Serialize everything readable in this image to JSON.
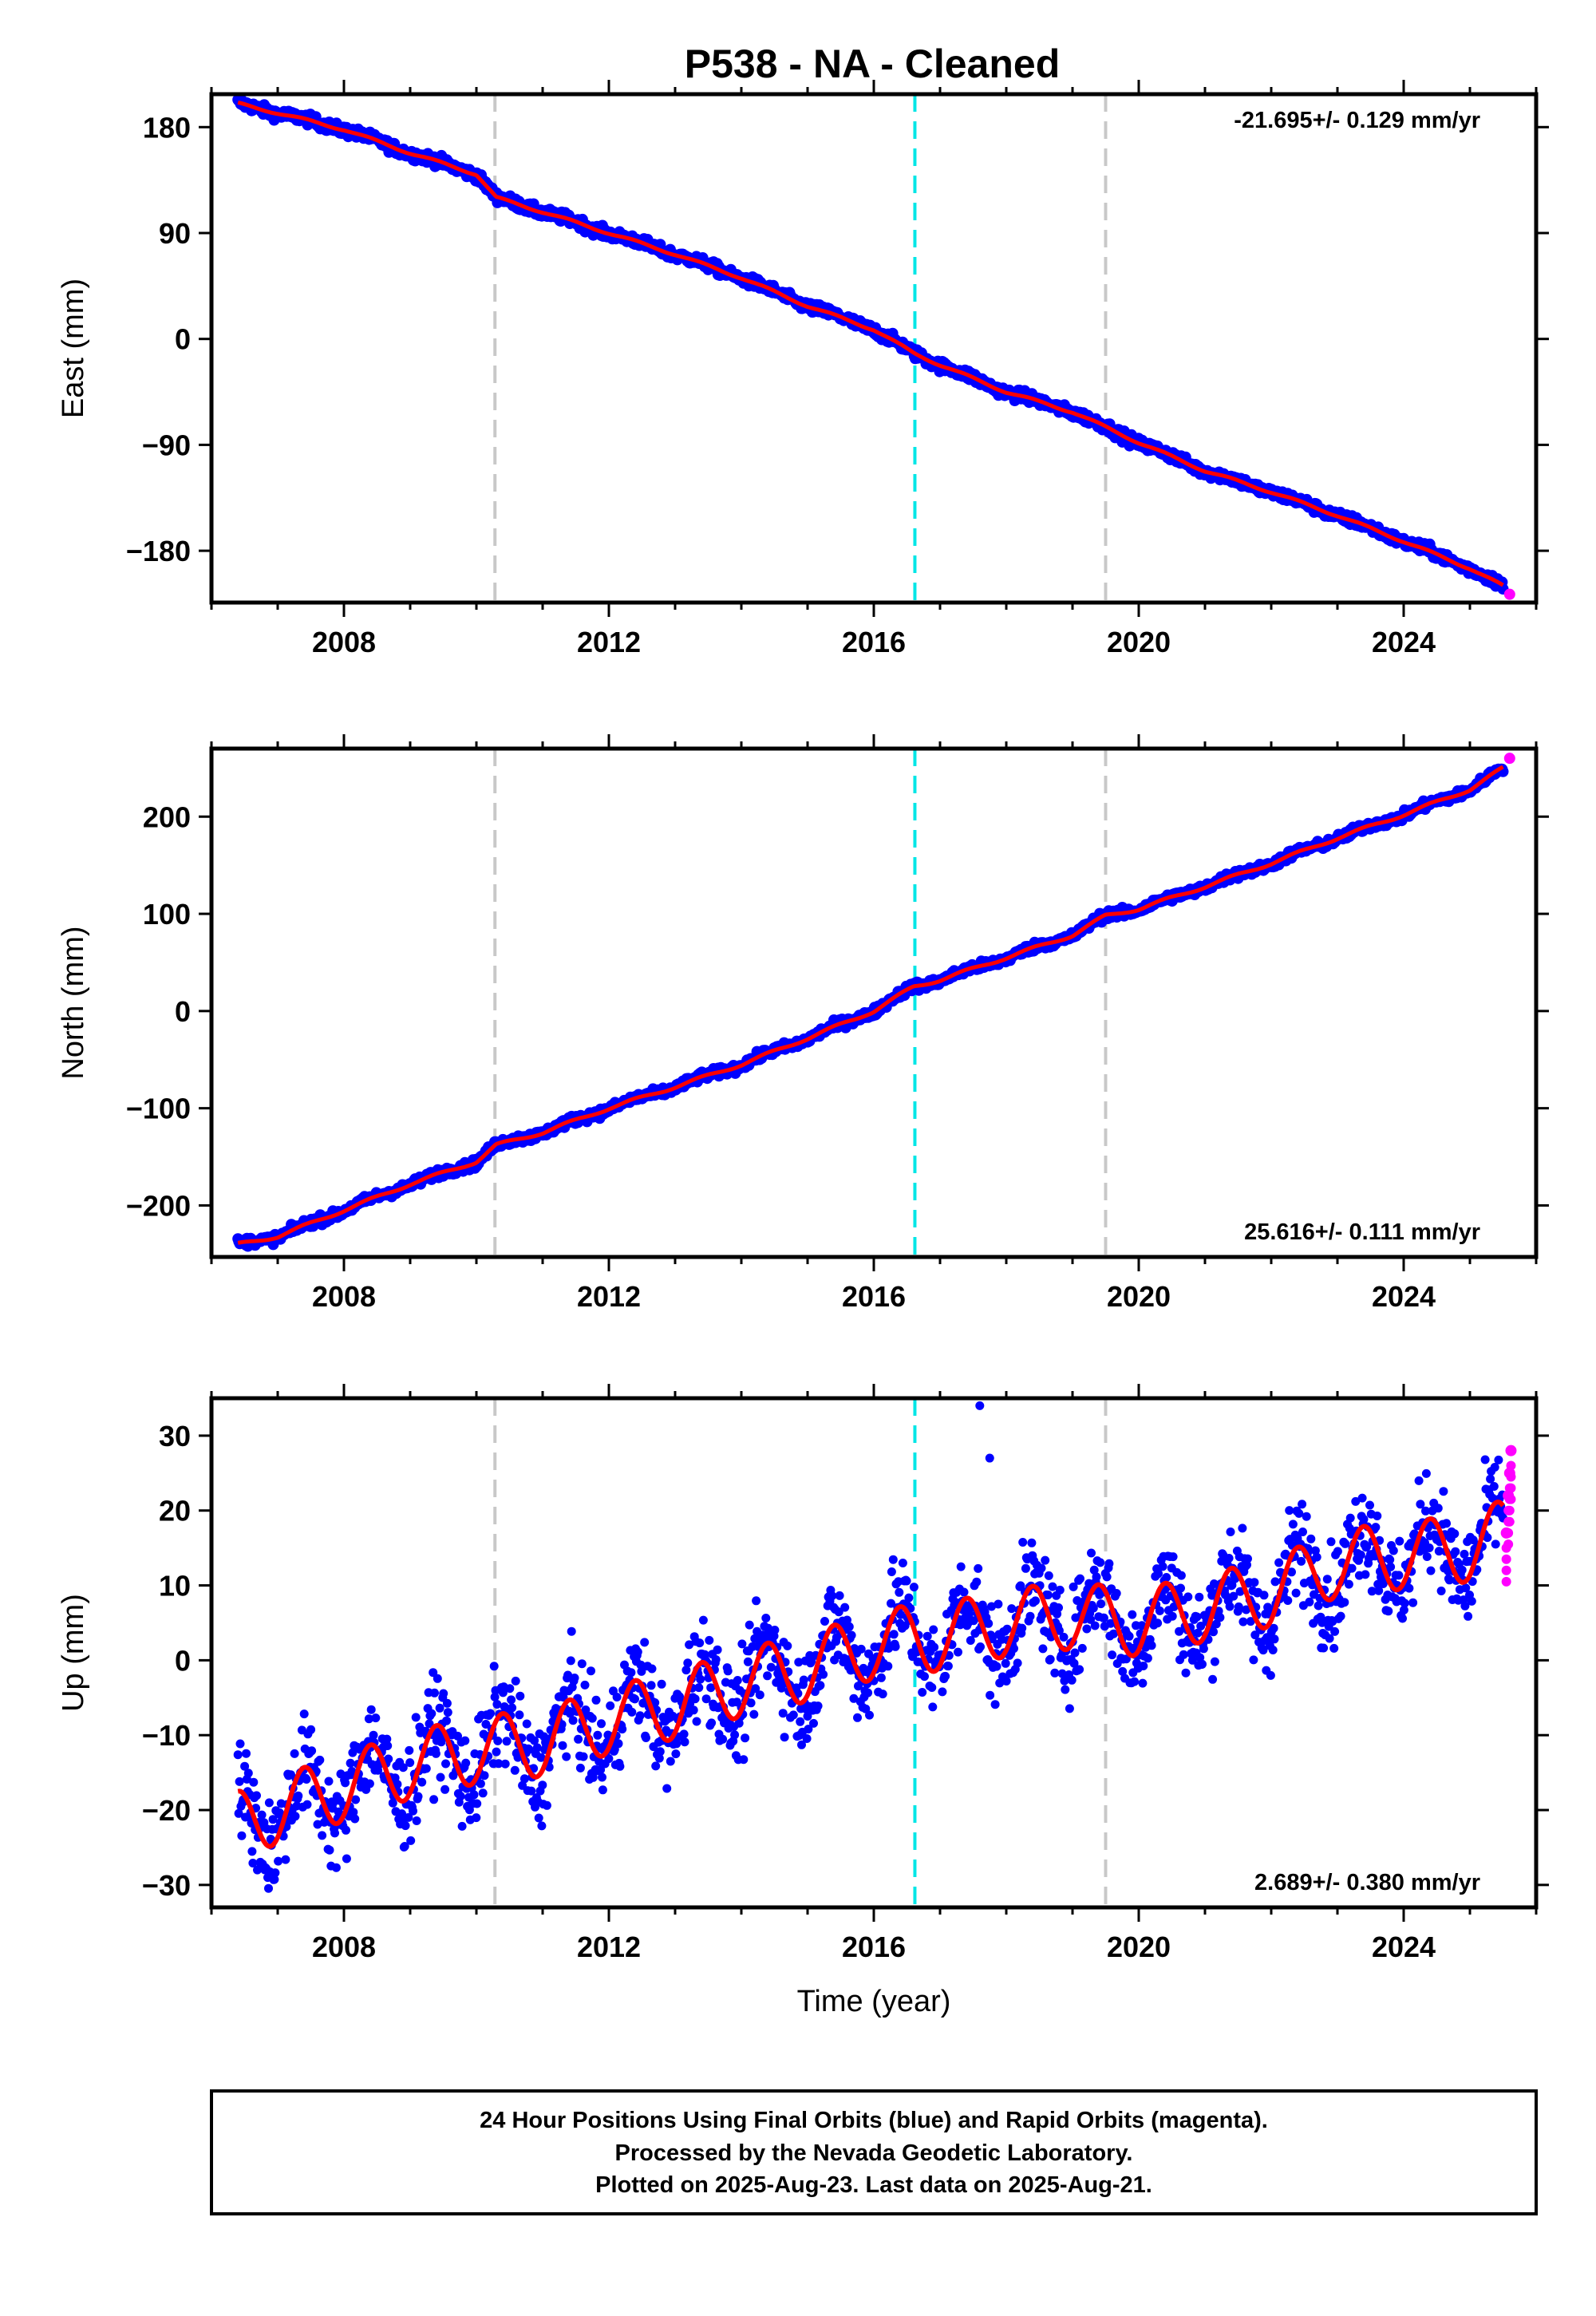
{
  "title": "P538  - NA - Cleaned",
  "colors": {
    "final": "#0000ff",
    "rapid": "#ff00ff",
    "model": "#ff0000",
    "event_gray": "#c8c8c8",
    "event_cyan": "#00e6e6"
  },
  "x_axis": {
    "label": "Time (year)",
    "range": [
      2006.0,
      2026.0
    ],
    "ticks": [
      2008,
      2012,
      2016,
      2020,
      2024
    ]
  },
  "events": [
    {
      "year": 2010.28,
      "color": "gray"
    },
    {
      "year": 2016.62,
      "color": "cyan"
    },
    {
      "year": 2019.5,
      "color": "gray"
    }
  ],
  "chart_data": [
    {
      "type": "scatter",
      "component": "east",
      "ylabel": "East (mm)",
      "ylim": [
        -224,
        208
      ],
      "yticks": [
        180,
        90,
        0,
        -90,
        -180
      ],
      "ytick_labels": [
        "180",
        "90",
        "0",
        "−90",
        "−180"
      ],
      "rate_text": "-21.695+/- 0.129 mm/yr",
      "rate_position": "top-right",
      "series": [
        {
          "name": "Final Orbits",
          "color": "blue",
          "x": [
            2006.4,
            2007.0,
            2008.0,
            2009.0,
            2010.0,
            2010.3,
            2011.0,
            2012.0,
            2013.0,
            2014.0,
            2015.0,
            2016.0,
            2016.6,
            2017.0,
            2018.0,
            2019.0,
            2019.5,
            2020.0,
            2021.0,
            2022.0,
            2023.0,
            2024.0,
            2025.0,
            2025.5
          ],
          "y": [
            200,
            192,
            178,
            158,
            140,
            120,
            108,
            90,
            72,
            52,
            28,
            8,
            -12,
            -22,
            -45,
            -62,
            -75,
            -88,
            -112,
            -130,
            -150,
            -172,
            -195,
            -210
          ]
        },
        {
          "name": "Rapid Orbits",
          "color": "magenta",
          "x": [
            2025.6
          ],
          "y": [
            -217
          ]
        }
      ],
      "model": {
        "rate_mm_per_yr": -21.695,
        "annual_amplitude_mm": 1.0
      }
    },
    {
      "type": "scatter",
      "component": "north",
      "ylabel": "North (mm)",
      "ylim": [
        -253,
        270
      ],
      "yticks": [
        200,
        100,
        0,
        -100,
        -200
      ],
      "ytick_labels": [
        "200",
        "100",
        "0",
        "−100",
        "−200"
      ],
      "rate_text": "25.616+/- 0.111 mm/yr",
      "rate_position": "bottom-right",
      "series": [
        {
          "name": "Final Orbits",
          "color": "blue",
          "x": [
            2006.4,
            2007.0,
            2008.0,
            2009.0,
            2010.0,
            2010.3,
            2011.0,
            2012.0,
            2013.0,
            2014.0,
            2015.0,
            2016.0,
            2016.6,
            2017.0,
            2018.0,
            2019.0,
            2019.5,
            2020.0,
            2021.0,
            2022.0,
            2023.0,
            2024.0,
            2025.0,
            2025.5
          ],
          "y": [
            -240,
            -232,
            -205,
            -178,
            -155,
            -138,
            -125,
            -100,
            -78,
            -55,
            -28,
            0,
            25,
            32,
            55,
            78,
            98,
            105,
            128,
            152,
            178,
            202,
            228,
            250
          ]
        },
        {
          "name": "Rapid Orbits",
          "color": "magenta",
          "x": [
            2025.6
          ],
          "y": [
            260
          ]
        }
      ],
      "model": {
        "rate_mm_per_yr": 25.616,
        "annual_amplitude_mm": 1.5
      }
    },
    {
      "type": "scatter",
      "component": "up",
      "ylabel": "Up (mm)",
      "ylim": [
        -33,
        35
      ],
      "yticks": [
        30,
        20,
        10,
        0,
        -10,
        -20,
        -30
      ],
      "ytick_labels": [
        "30",
        "20",
        "10",
        "0",
        "−10",
        "−20",
        "−30"
      ],
      "rate_text": "2.689+/- 0.380 mm/yr",
      "rate_position": "bottom-right",
      "series": [
        {
          "name": "Final Orbits",
          "color": "blue",
          "x": [
            2006.4,
            2007.0,
            2008.0,
            2009.0,
            2010.0,
            2011.0,
            2012.0,
            2013.0,
            2014.0,
            2015.0,
            2016.0,
            2016.6,
            2017.0,
            2018.0,
            2019.0,
            2020.0,
            2021.0,
            2022.0,
            2023.0,
            2024.0,
            2025.0,
            2025.5
          ],
          "y": [
            -22,
            -20,
            -17,
            -14,
            -12,
            -11,
            -8,
            -6,
            -3,
            -1,
            2,
            3,
            3,
            5,
            6,
            5,
            7,
            9,
            13,
            14,
            15,
            17
          ]
        },
        {
          "name": "Rapid Orbits",
          "color": "magenta",
          "x": [
            2025.55,
            2025.58,
            2025.6,
            2025.62
          ],
          "y": [
            17,
            22,
            25,
            28
          ]
        }
      ],
      "outliers": {
        "x": [
          2017.6,
          2017.75
        ],
        "y": [
          34,
          27
        ]
      },
      "model": {
        "rate_mm_per_yr": 2.689,
        "annual_amplitude_mm": 4.5
      }
    }
  ],
  "footer": {
    "line1": "24 Hour Positions Using Final Orbits (blue) and Rapid Orbits (magenta).",
    "line2": "Processed by the Nevada Geodetic Laboratory.",
    "line3": "Plotted on 2025-Aug-23. Last data on 2025-Aug-21."
  }
}
